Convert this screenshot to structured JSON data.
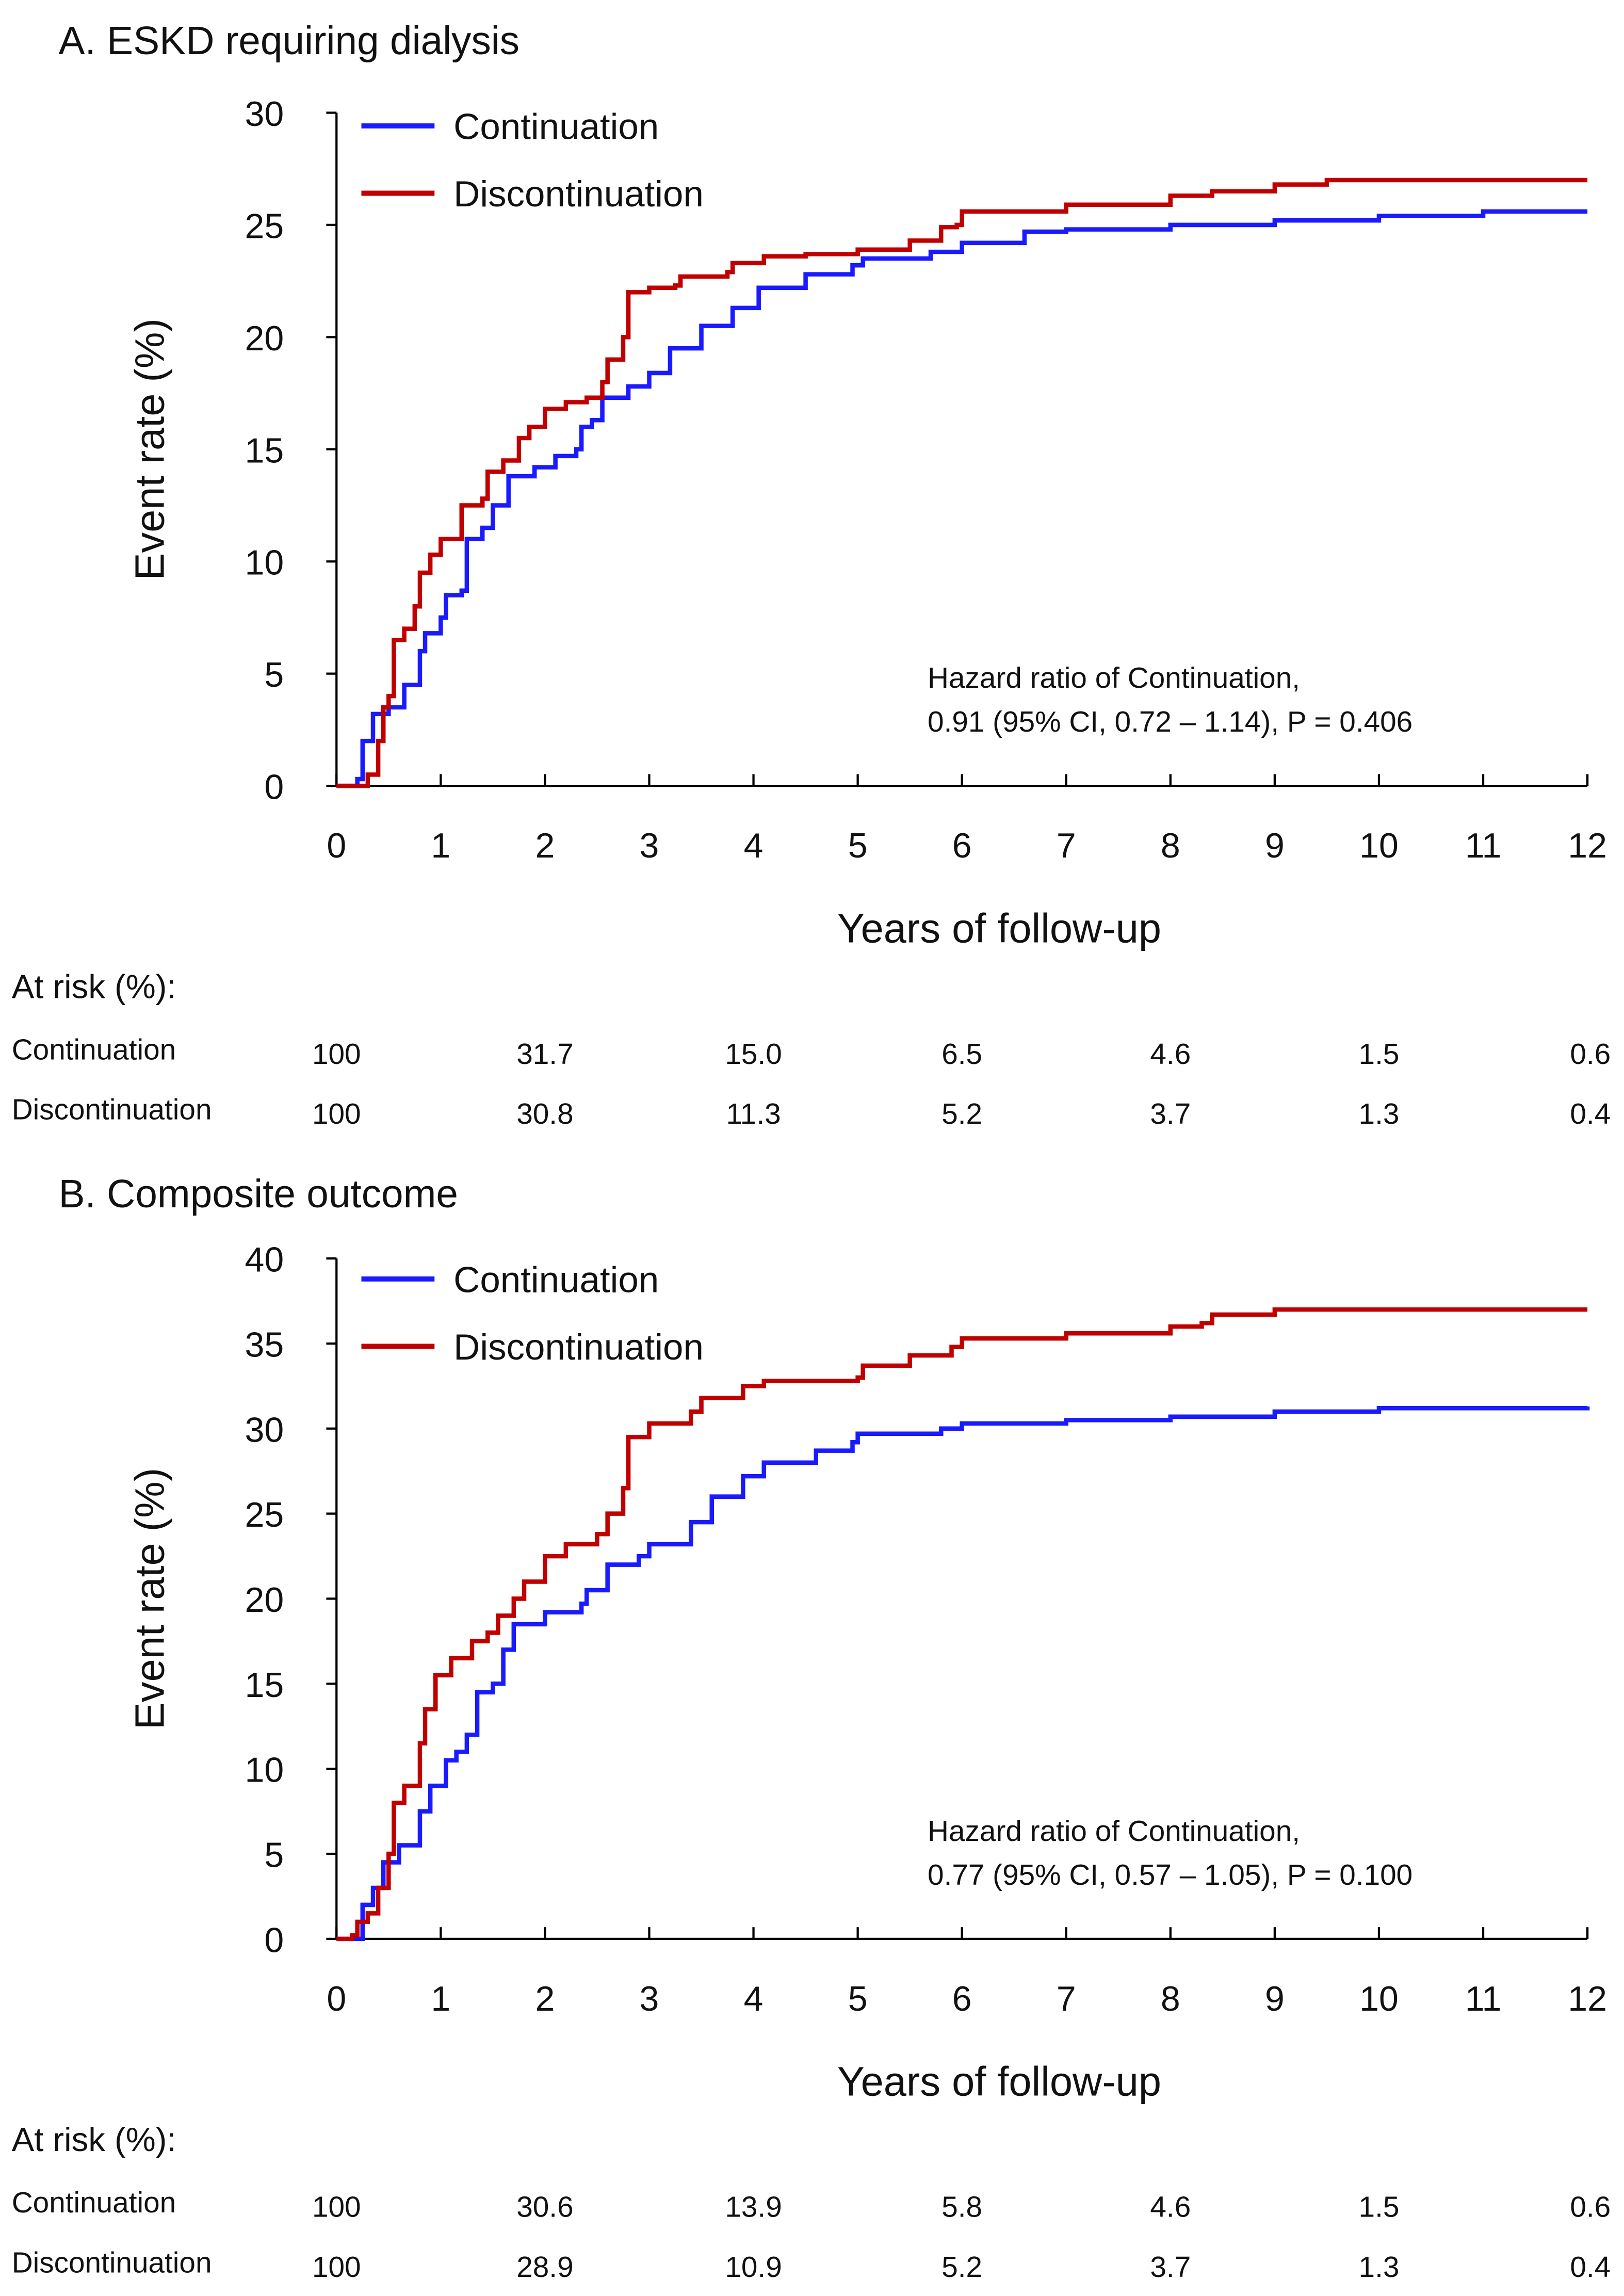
{
  "colors": {
    "continuation": "#1a1aff",
    "discontinuation": "#c00000"
  },
  "chart_data": [
    {
      "type": "line",
      "title": "A. ESKD requiring dialysis",
      "xlabel": "Years of follow-up",
      "ylabel": "Event rate (%)",
      "xlim": [
        0,
        12
      ],
      "ylim": [
        0,
        30
      ],
      "xticks": [
        "0",
        "1",
        "2",
        "3",
        "4",
        "5",
        "6",
        "7",
        "8",
        "9",
        "10",
        "11",
        "12"
      ],
      "yticks": [
        "0",
        "5",
        "10",
        "15",
        "20",
        "25",
        "30"
      ],
      "legend": [
        "Continuation",
        "Discontinuation"
      ],
      "legend_position": "top-left",
      "annotation": [
        "Hazard ratio of Continuation,",
        "0.91 (95% CI, 0.72 – 1.14), P = 0.406"
      ],
      "series": [
        {
          "name": "Continuation",
          "points": [
            [
              0,
              0
            ],
            [
              0.2,
              0.3
            ],
            [
              0.25,
              2
            ],
            [
              0.35,
              3.2
            ],
            [
              0.5,
              3.5
            ],
            [
              0.65,
              4.5
            ],
            [
              0.8,
              6
            ],
            [
              0.85,
              6.8
            ],
            [
              1,
              7.5
            ],
            [
              1.05,
              8.5
            ],
            [
              1.2,
              8.7
            ],
            [
              1.25,
              11
            ],
            [
              1.4,
              11.5
            ],
            [
              1.5,
              12.5
            ],
            [
              1.65,
              13.8
            ],
            [
              1.9,
              14.2
            ],
            [
              2.1,
              14.7
            ],
            [
              2.3,
              15
            ],
            [
              2.35,
              16
            ],
            [
              2.45,
              16.3
            ],
            [
              2.55,
              17.3
            ],
            [
              2.8,
              17.8
            ],
            [
              3,
              18.4
            ],
            [
              3.2,
              19.5
            ],
            [
              3.5,
              20.5
            ],
            [
              3.8,
              21.3
            ],
            [
              4.05,
              22.2
            ],
            [
              4.5,
              22.8
            ],
            [
              4.95,
              23.2
            ],
            [
              5.05,
              23.5
            ],
            [
              5.7,
              23.8
            ],
            [
              6,
              24.2
            ],
            [
              6.6,
              24.7
            ],
            [
              7,
              24.8
            ],
            [
              8,
              25
            ],
            [
              9,
              25.2
            ],
            [
              10,
              25.4
            ],
            [
              11,
              25.6
            ],
            [
              12,
              25.6
            ]
          ]
        },
        {
          "name": "Discontinuation",
          "points": [
            [
              0,
              0
            ],
            [
              0.3,
              0.5
            ],
            [
              0.4,
              2
            ],
            [
              0.45,
              3.5
            ],
            [
              0.5,
              4
            ],
            [
              0.55,
              6.5
            ],
            [
              0.65,
              7
            ],
            [
              0.75,
              8
            ],
            [
              0.8,
              9.5
            ],
            [
              0.9,
              10.3
            ],
            [
              1,
              11
            ],
            [
              1.2,
              12.5
            ],
            [
              1.4,
              12.8
            ],
            [
              1.45,
              14
            ],
            [
              1.6,
              14.5
            ],
            [
              1.75,
              15.5
            ],
            [
              1.85,
              16
            ],
            [
              2,
              16.8
            ],
            [
              2.2,
              17.1
            ],
            [
              2.4,
              17.3
            ],
            [
              2.55,
              18
            ],
            [
              2.6,
              19
            ],
            [
              2.75,
              20
            ],
            [
              2.8,
              22
            ],
            [
              3,
              22.2
            ],
            [
              3.25,
              22.3
            ],
            [
              3.3,
              22.7
            ],
            [
              3.75,
              22.9
            ],
            [
              3.8,
              23.3
            ],
            [
              4.1,
              23.6
            ],
            [
              4.5,
              23.7
            ],
            [
              5,
              23.9
            ],
            [
              5.5,
              24.3
            ],
            [
              5.8,
              24.9
            ],
            [
              5.95,
              25
            ],
            [
              6,
              25.6
            ],
            [
              7,
              25.9
            ],
            [
              8,
              26.3
            ],
            [
              8.4,
              26.5
            ],
            [
              9,
              26.8
            ],
            [
              9.5,
              27
            ],
            [
              12,
              27
            ]
          ]
        }
      ],
      "at_risk": {
        "header": "At risk (%):",
        "years": [
          0,
          2,
          4,
          6,
          8,
          10,
          12
        ],
        "rows": [
          {
            "label": "Continuation",
            "values": [
              "100",
              "31.7",
              "15.0",
              "6.5",
              "4.6",
              "1.5",
              "0.6"
            ]
          },
          {
            "label": "Discontinuation",
            "values": [
              "100",
              "30.8",
              "11.3",
              "5.2",
              "3.7",
              "1.3",
              "0.4"
            ]
          }
        ]
      }
    },
    {
      "type": "line",
      "title": "B. Composite outcome",
      "xlabel": "Years of follow-up",
      "ylabel": "Event rate (%)",
      "xlim": [
        0,
        12
      ],
      "ylim": [
        0,
        40
      ],
      "xticks": [
        "0",
        "1",
        "2",
        "3",
        "4",
        "5",
        "6",
        "7",
        "8",
        "9",
        "10",
        "11",
        "12"
      ],
      "yticks": [
        "0",
        "5",
        "10",
        "15",
        "20",
        "25",
        "30",
        "35",
        "40"
      ],
      "legend": [
        "Continuation",
        "Discontinuation"
      ],
      "legend_position": "top-left",
      "annotation": [
        "Hazard ratio of Continuation,",
        "0.77 (95% CI, 0.57 – 1.05), P = 0.100"
      ],
      "series": [
        {
          "name": "Continuation",
          "points": [
            [
              0,
              0
            ],
            [
              0.2,
              0
            ],
            [
              0.25,
              2
            ],
            [
              0.35,
              3
            ],
            [
              0.45,
              4.5
            ],
            [
              0.6,
              5.5
            ],
            [
              0.8,
              7.5
            ],
            [
              0.9,
              9
            ],
            [
              1.05,
              10.5
            ],
            [
              1.15,
              11
            ],
            [
              1.25,
              12
            ],
            [
              1.35,
              14.5
            ],
            [
              1.5,
              15
            ],
            [
              1.6,
              17
            ],
            [
              1.7,
              18.5
            ],
            [
              2,
              19.2
            ],
            [
              2.35,
              19.7
            ],
            [
              2.4,
              20.5
            ],
            [
              2.6,
              22
            ],
            [
              2.9,
              22.5
            ],
            [
              3,
              23.2
            ],
            [
              3.4,
              24.5
            ],
            [
              3.6,
              26
            ],
            [
              3.9,
              27.2
            ],
            [
              4.1,
              28
            ],
            [
              4.6,
              28.7
            ],
            [
              4.95,
              29.2
            ],
            [
              5,
              29.7
            ],
            [
              5.8,
              30
            ],
            [
              6,
              30.3
            ],
            [
              7,
              30.5
            ],
            [
              8,
              30.7
            ],
            [
              9,
              31
            ],
            [
              10,
              31.2
            ],
            [
              12,
              31.3
            ]
          ]
        },
        {
          "name": "Discontinuation",
          "points": [
            [
              0,
              0
            ],
            [
              0.15,
              0.2
            ],
            [
              0.2,
              1
            ],
            [
              0.3,
              1.5
            ],
            [
              0.4,
              3
            ],
            [
              0.5,
              5
            ],
            [
              0.55,
              8
            ],
            [
              0.65,
              9
            ],
            [
              0.8,
              11.5
            ],
            [
              0.85,
              13.5
            ],
            [
              0.95,
              15.5
            ],
            [
              1.1,
              16.5
            ],
            [
              1.3,
              17.5
            ],
            [
              1.45,
              18
            ],
            [
              1.55,
              19
            ],
            [
              1.7,
              20
            ],
            [
              1.8,
              21
            ],
            [
              2,
              22.5
            ],
            [
              2.2,
              23.2
            ],
            [
              2.5,
              23.8
            ],
            [
              2.6,
              25
            ],
            [
              2.75,
              26.5
            ],
            [
              2.8,
              29.5
            ],
            [
              3,
              30.3
            ],
            [
              3.4,
              31
            ],
            [
              3.5,
              31.8
            ],
            [
              3.9,
              32.5
            ],
            [
              4.1,
              32.8
            ],
            [
              5,
              33
            ],
            [
              5.05,
              33.7
            ],
            [
              5.5,
              34.3
            ],
            [
              5.9,
              34.8
            ],
            [
              6,
              35.3
            ],
            [
              7,
              35.6
            ],
            [
              8,
              36
            ],
            [
              8.3,
              36.2
            ],
            [
              8.4,
              36.7
            ],
            [
              9,
              37
            ],
            [
              12,
              37
            ]
          ]
        }
      ],
      "at_risk": {
        "header": "At risk (%):",
        "years": [
          0,
          2,
          4,
          6,
          8,
          10,
          12
        ],
        "rows": [
          {
            "label": "Continuation",
            "values": [
              "100",
              "30.6",
              "13.9",
              "5.8",
              "4.6",
              "1.5",
              "0.6"
            ]
          },
          {
            "label": "Discontinuation",
            "values": [
              "100",
              "28.9",
              "10.9",
              "5.2",
              "3.7",
              "1.3",
              "0.4"
            ]
          }
        ]
      }
    }
  ]
}
